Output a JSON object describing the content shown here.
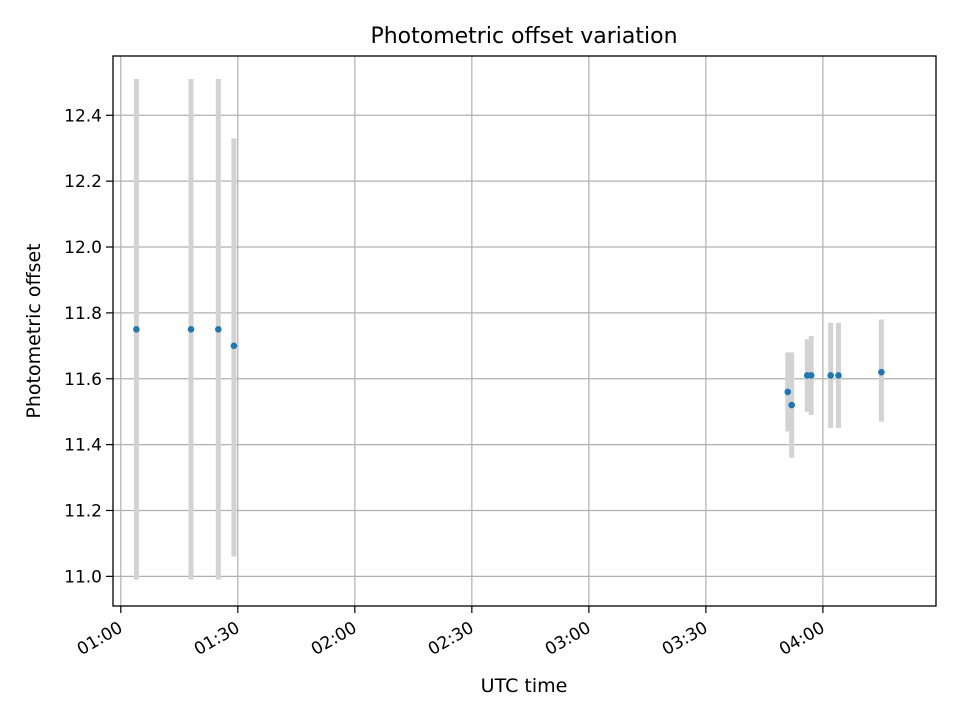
{
  "chart_data": {
    "type": "scatter",
    "title": "Photometric offset variation",
    "xlabel": "UTC time",
    "ylabel": "Photometric offset",
    "x_unit": "UTC time (HH:MM)",
    "xlim": [
      "00:58",
      "04:29"
    ],
    "ylim": [
      10.91,
      12.58
    ],
    "x_ticks": [
      "01:00",
      "01:30",
      "02:00",
      "02:30",
      "03:00",
      "03:30",
      "04:00"
    ],
    "y_ticks": [
      "11.0",
      "11.2",
      "11.4",
      "11.6",
      "11.8",
      "12.0",
      "12.2",
      "12.4"
    ],
    "grid": true,
    "colors": {
      "point": "#1f77b4",
      "errorbar": "#d3d3d3",
      "grid": "#b0b0b0"
    },
    "points": [
      {
        "x": "01:04",
        "y": 11.75,
        "ylow": 10.99,
        "yhigh": 12.51
      },
      {
        "x": "01:18",
        "y": 11.75,
        "ylow": 10.99,
        "yhigh": 12.51
      },
      {
        "x": "01:25",
        "y": 11.75,
        "ylow": 10.99,
        "yhigh": 12.51
      },
      {
        "x": "01:29",
        "y": 11.7,
        "ylow": 11.06,
        "yhigh": 12.33
      },
      {
        "x": "03:51",
        "y": 11.56,
        "ylow": 11.44,
        "yhigh": 11.68
      },
      {
        "x": "03:52",
        "y": 11.52,
        "ylow": 11.36,
        "yhigh": 11.68
      },
      {
        "x": "03:56",
        "y": 11.61,
        "ylow": 11.5,
        "yhigh": 11.72
      },
      {
        "x": "03:57",
        "y": 11.61,
        "ylow": 11.49,
        "yhigh": 11.73
      },
      {
        "x": "04:02",
        "y": 11.61,
        "ylow": 11.45,
        "yhigh": 11.77
      },
      {
        "x": "04:04",
        "y": 11.61,
        "ylow": 11.45,
        "yhigh": 11.77
      },
      {
        "x": "04:15",
        "y": 11.62,
        "ylow": 11.47,
        "yhigh": 11.78
      }
    ]
  }
}
